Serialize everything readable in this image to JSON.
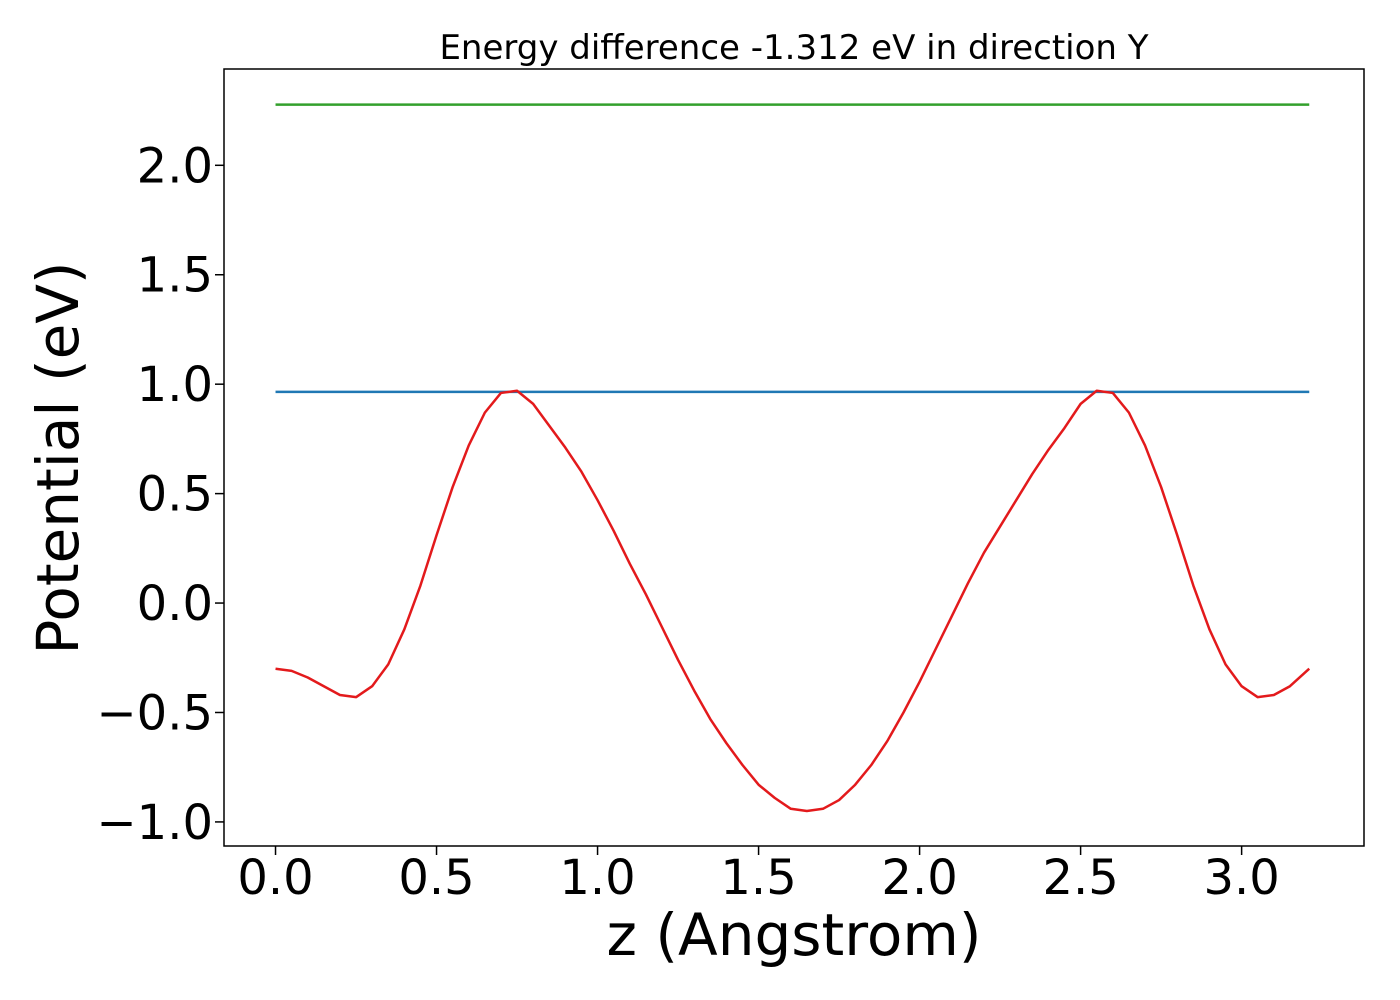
{
  "chart_data": {
    "type": "line",
    "title": "Energy difference -1.312 eV in direction Y",
    "xlabel": "z (Angstrom)",
    "ylabel": "Potential (eV)",
    "xlim": [
      -0.16,
      3.38
    ],
    "ylim": [
      -1.11,
      2.44
    ],
    "xticks": [
      0.0,
      0.5,
      1.0,
      1.5,
      2.0,
      2.5,
      3.0
    ],
    "xtick_labels": [
      "0.0",
      "0.5",
      "1.0",
      "1.5",
      "2.0",
      "2.5",
      "3.0"
    ],
    "yticks": [
      -1.0,
      -0.5,
      0.0,
      0.5,
      1.0,
      1.5,
      2.0
    ],
    "ytick_labels": [
      "−1.0",
      "−0.5",
      "0.0",
      "0.5",
      "1.0",
      "1.5",
      "2.0"
    ],
    "grid": false,
    "series": [
      {
        "color": "#e31a1c",
        "x": [
          0.0,
          0.05,
          0.1,
          0.15,
          0.2,
          0.25,
          0.3,
          0.35,
          0.4,
          0.45,
          0.5,
          0.55,
          0.6,
          0.65,
          0.7,
          0.75,
          0.8,
          0.85,
          0.9,
          0.95,
          1.0,
          1.05,
          1.1,
          1.15,
          1.2,
          1.25,
          1.3,
          1.35,
          1.4,
          1.45,
          1.5,
          1.55,
          1.6,
          1.65,
          1.7,
          1.75,
          1.8,
          1.85,
          1.9,
          1.95,
          2.0,
          2.05,
          2.1,
          2.15,
          2.2,
          2.25,
          2.3,
          2.35,
          2.4,
          2.45,
          2.5,
          2.55,
          2.6,
          2.65,
          2.7,
          2.75,
          2.8,
          2.85,
          2.9,
          2.95,
          3.0,
          3.05,
          3.1,
          3.15,
          3.21
        ],
        "y": [
          -0.3,
          -0.31,
          -0.34,
          -0.38,
          -0.42,
          -0.43,
          -0.38,
          -0.28,
          -0.12,
          0.08,
          0.31,
          0.53,
          0.72,
          0.87,
          0.96,
          0.97,
          0.91,
          0.81,
          0.71,
          0.6,
          0.47,
          0.33,
          0.18,
          0.04,
          -0.11,
          -0.26,
          -0.4,
          -0.53,
          -0.64,
          -0.74,
          -0.83,
          -0.89,
          -0.94,
          -0.95,
          -0.94,
          -0.9,
          -0.83,
          -0.74,
          -0.63,
          -0.5,
          -0.36,
          -0.21,
          -0.06,
          0.09,
          0.23,
          0.35,
          0.47,
          0.59,
          0.7,
          0.8,
          0.91,
          0.97,
          0.96,
          0.87,
          0.72,
          0.53,
          0.31,
          0.08,
          -0.12,
          -0.28,
          -0.38,
          -0.43,
          -0.42,
          -0.38,
          -0.3
        ]
      },
      {
        "color": "#1f78b4",
        "x": [
          0.0,
          3.21
        ],
        "y": [
          0.965,
          0.965
        ]
      },
      {
        "color": "#33a02c",
        "x": [
          0.0,
          3.21
        ],
        "y": [
          2.277,
          2.277
        ]
      }
    ]
  }
}
